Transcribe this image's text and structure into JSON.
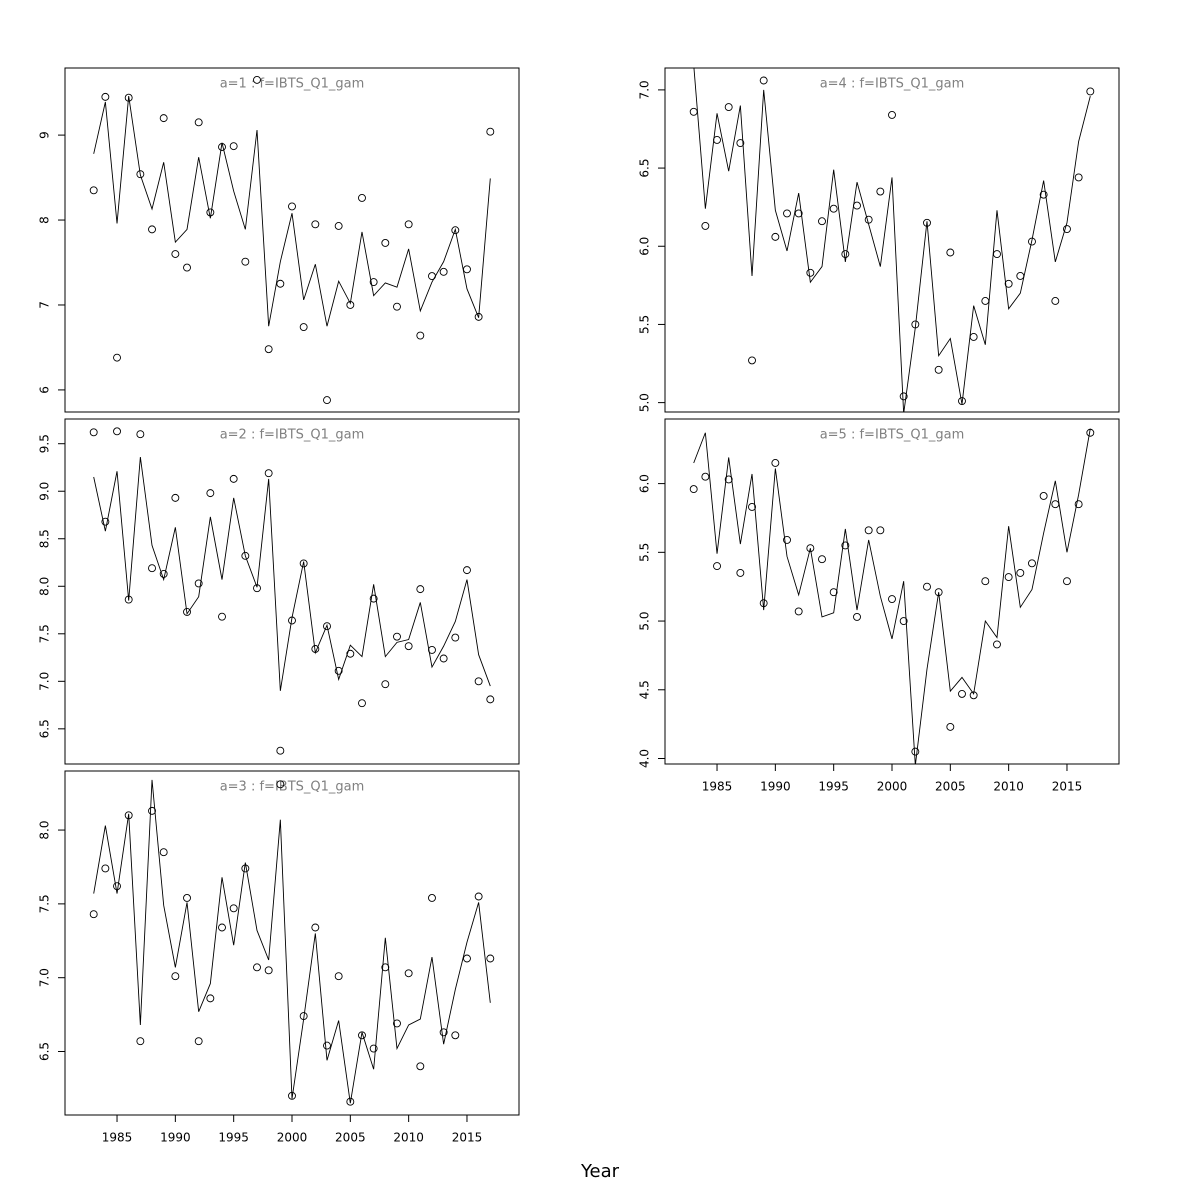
{
  "xlabel": "Year",
  "chart_data": [
    {
      "type": "line",
      "title": "a=1  :  f=IBTS_Q1_gam",
      "x": [
        1983,
        1984,
        1985,
        1986,
        1987,
        1988,
        1989,
        1990,
        1991,
        1992,
        1993,
        1994,
        1995,
        1996,
        1997,
        1998,
        1999,
        2000,
        2001,
        2002,
        2003,
        2004,
        2005,
        2006,
        2007,
        2008,
        2009,
        2010,
        2011,
        2012,
        2013,
        2014,
        2015,
        2016,
        2017
      ],
      "series": [
        {
          "style": "points",
          "color": "#000000",
          "values": [
            8.35,
            9.45,
            6.38,
            9.44,
            8.54,
            7.89,
            9.2,
            7.6,
            7.44,
            9.15,
            8.09,
            8.86,
            8.87,
            7.51,
            9.65,
            6.48,
            7.25,
            8.16,
            6.74,
            7.95,
            5.88,
            7.93,
            7.0,
            8.26,
            7.27,
            7.73,
            6.98,
            7.95,
            6.64,
            7.34,
            7.39,
            7.88,
            7.42,
            6.86,
            9.04
          ]
        },
        {
          "style": "line",
          "color": "#000000",
          "values": [
            8.78,
            9.39,
            7.96,
            9.46,
            8.53,
            8.13,
            8.68,
            7.74,
            7.89,
            8.74,
            8.02,
            8.91,
            8.34,
            7.89,
            9.06,
            6.75,
            7.51,
            8.08,
            7.06,
            7.48,
            6.75,
            7.28,
            7.02,
            7.86,
            7.11,
            7.26,
            7.21,
            7.66,
            6.93,
            7.27,
            7.51,
            7.89,
            7.19,
            6.85,
            8.49
          ]
        }
      ],
      "xlim": [
        1980.54,
        2019.46
      ],
      "ylim": [
        5.74,
        9.79
      ],
      "yticks": [
        6,
        7,
        8,
        9
      ]
    },
    {
      "type": "line",
      "title": "a=2  :  f=IBTS_Q1_gam",
      "x": [
        1983,
        1984,
        1985,
        1986,
        1987,
        1988,
        1989,
        1990,
        1991,
        1992,
        1993,
        1994,
        1995,
        1996,
        1997,
        1998,
        1999,
        2000,
        2001,
        2002,
        2003,
        2004,
        2005,
        2006,
        2007,
        2008,
        2009,
        2010,
        2011,
        2012,
        2013,
        2014,
        2015,
        2016,
        2017
      ],
      "series": [
        {
          "style": "points",
          "color": "#000000",
          "values": [
            9.62,
            8.68,
            9.63,
            7.86,
            9.6,
            8.19,
            8.13,
            8.93,
            7.73,
            8.03,
            8.98,
            7.68,
            9.13,
            8.32,
            7.98,
            9.19,
            6.27,
            7.64,
            8.24,
            7.34,
            7.58,
            7.11,
            7.29,
            6.77,
            7.87,
            6.97,
            7.47,
            7.37,
            7.97,
            7.33,
            7.24,
            7.46,
            8.17,
            7.0,
            6.81
          ]
        },
        {
          "style": "line",
          "color": "#000000",
          "values": [
            9.15,
            8.58,
            9.21,
            7.85,
            9.36,
            8.43,
            8.07,
            8.62,
            7.71,
            7.89,
            8.73,
            8.07,
            8.93,
            8.32,
            7.99,
            9.13,
            6.9,
            7.67,
            8.26,
            7.3,
            7.59,
            7.02,
            7.38,
            7.26,
            8.02,
            7.26,
            7.41,
            7.44,
            7.83,
            7.15,
            7.37,
            7.63,
            8.07,
            7.28,
            6.95
          ]
        }
      ],
      "xlim": [
        1980.54,
        2019.46
      ],
      "ylim": [
        6.13,
        9.76
      ],
      "yticks": [
        6.5,
        {
          "value": 7,
          "label": "7.0"
        },
        7.5,
        {
          "value": 8,
          "label": "8.0"
        },
        8.5,
        {
          "value": 9,
          "label": "9.0"
        },
        9.5
      ]
    },
    {
      "type": "line",
      "title": "a=3  :  f=IBTS_Q1_gam",
      "x": [
        1983,
        1984,
        1985,
        1986,
        1987,
        1988,
        1989,
        1990,
        1991,
        1992,
        1993,
        1994,
        1995,
        1996,
        1997,
        1998,
        1999,
        2000,
        2001,
        2002,
        2003,
        2004,
        2005,
        2006,
        2007,
        2008,
        2009,
        2010,
        2011,
        2012,
        2013,
        2014,
        2015,
        2016,
        2017
      ],
      "series": [
        {
          "style": "points",
          "color": "#000000",
          "values": [
            7.43,
            7.74,
            7.62,
            8.1,
            6.57,
            8.13,
            7.85,
            7.01,
            7.54,
            6.57,
            6.86,
            7.34,
            7.47,
            7.74,
            7.07,
            7.05,
            8.31,
            6.2,
            6.74,
            7.34,
            6.54,
            7.01,
            6.16,
            6.61,
            6.52,
            7.07,
            6.69,
            7.03,
            6.4,
            7.54,
            6.63,
            6.61,
            7.13,
            7.55,
            7.13
          ]
        },
        {
          "style": "line",
          "color": "#000000",
          "values": [
            7.57,
            8.03,
            7.57,
            8.11,
            6.68,
            8.34,
            7.49,
            7.07,
            7.51,
            6.77,
            6.96,
            7.68,
            7.22,
            7.78,
            7.32,
            7.12,
            8.07,
            6.18,
            6.72,
            7.3,
            6.44,
            6.71,
            6.15,
            6.63,
            6.38,
            7.27,
            6.52,
            6.68,
            6.72,
            7.14,
            6.55,
            6.92,
            7.24,
            7.51,
            6.83
          ]
        }
      ],
      "xlim": [
        1980.54,
        2019.46
      ],
      "ylim": [
        6.07,
        8.4
      ],
      "xticks": [
        1985,
        1990,
        1995,
        2000,
        2005,
        2010,
        2015
      ],
      "yticks": [
        6.5,
        {
          "value": 7,
          "label": "7.0"
        },
        7.5,
        {
          "value": 8,
          "label": "8.0"
        }
      ]
    },
    {
      "type": "line",
      "title": "a=4  :  f=IBTS_Q1_gam",
      "x": [
        1983,
        1984,
        1985,
        1986,
        1987,
        1988,
        1989,
        1990,
        1991,
        1992,
        1993,
        1994,
        1995,
        1996,
        1997,
        1998,
        1999,
        2000,
        2001,
        2002,
        2003,
        2004,
        2005,
        2006,
        2007,
        2008,
        2009,
        2010,
        2011,
        2012,
        2013,
        2014,
        2015,
        2016,
        2017
      ],
      "series": [
        {
          "style": "points",
          "color": "#000000",
          "values": [
            6.86,
            6.13,
            6.68,
            6.89,
            6.66,
            5.27,
            7.06,
            6.06,
            6.21,
            6.21,
            5.83,
            6.16,
            6.24,
            5.95,
            6.26,
            6.17,
            6.35,
            6.84,
            5.04,
            5.5,
            6.15,
            5.21,
            5.96,
            5.01,
            5.42,
            5.65,
            5.95,
            5.76,
            5.81,
            6.03,
            6.33,
            5.65,
            6.11,
            6.44,
            6.99
          ]
        },
        {
          "style": "line",
          "color": "#000000",
          "values": [
            7.16,
            6.24,
            6.85,
            6.48,
            6.9,
            5.81,
            7.0,
            6.23,
            5.97,
            6.34,
            5.77,
            5.87,
            6.49,
            5.9,
            6.41,
            6.14,
            5.87,
            6.44,
            4.93,
            5.48,
            6.16,
            5.3,
            5.41,
            4.99,
            5.62,
            5.37,
            6.23,
            5.6,
            5.7,
            6.04,
            6.42,
            5.9,
            6.15,
            6.67,
            6.96
          ]
        }
      ],
      "xlim": [
        1980.54,
        2019.46
      ],
      "ylim": [
        4.94,
        7.14
      ],
      "yticks": [
        {
          "value": 5,
          "label": "5.0"
        },
        5.5,
        {
          "value": 6,
          "label": "6.0"
        },
        6.5,
        {
          "value": 7,
          "label": "7.0"
        }
      ]
    },
    {
      "type": "line",
      "title": "a=5  :  f=IBTS_Q1_gam",
      "x": [
        1983,
        1984,
        1985,
        1986,
        1987,
        1988,
        1989,
        1990,
        1991,
        1992,
        1993,
        1994,
        1995,
        1996,
        1997,
        1998,
        1999,
        2000,
        2001,
        2002,
        2003,
        2004,
        2005,
        2006,
        2007,
        2008,
        2009,
        2010,
        2011,
        2012,
        2013,
        2014,
        2015,
        2016,
        2017
      ],
      "series": [
        {
          "style": "points",
          "color": "#000000",
          "values": [
            5.96,
            6.05,
            5.4,
            6.03,
            5.35,
            5.83,
            5.13,
            6.15,
            5.59,
            5.07,
            5.53,
            5.45,
            5.21,
            5.55,
            5.03,
            5.66,
            5.66,
            5.16,
            5.0,
            4.05,
            5.25,
            5.21,
            4.23,
            4.47,
            4.46,
            5.29,
            4.83,
            5.32,
            5.35,
            5.42,
            5.91,
            5.85,
            5.29,
            5.85,
            6.37
          ]
        },
        {
          "style": "line",
          "color": "#000000",
          "values": [
            6.15,
            6.37,
            5.49,
            6.19,
            5.56,
            6.07,
            5.08,
            6.11,
            5.47,
            5.19,
            5.53,
            5.03,
            5.06,
            5.67,
            5.08,
            5.59,
            5.18,
            4.87,
            5.29,
            3.95,
            4.65,
            5.21,
            4.49,
            4.59,
            4.47,
            5.0,
            4.88,
            5.69,
            5.1,
            5.23,
            5.64,
            6.02,
            5.5,
            5.92,
            6.4
          ]
        }
      ],
      "xlim": [
        1980.54,
        2019.46
      ],
      "ylim": [
        3.96,
        6.47
      ],
      "xticks": [
        1985,
        1990,
        1995,
        2000,
        2005,
        2010,
        2015
      ],
      "yticks": [
        {
          "value": 4,
          "label": "4.0"
        },
        4.5,
        {
          "value": 5,
          "label": "5.0"
        },
        5.5,
        {
          "value": 6,
          "label": "6.0"
        }
      ]
    }
  ]
}
